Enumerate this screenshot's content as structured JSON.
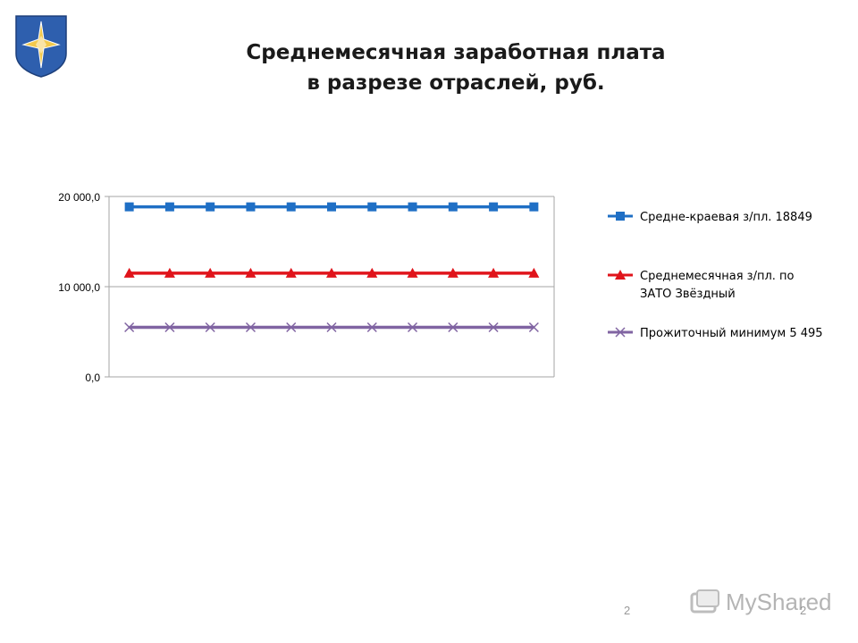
{
  "slide": {
    "title_line1": "Среднемесячная заработная плата",
    "title_line2": "в разрезе отраслей, руб.",
    "page_number_left": "2",
    "page_number_right": "2",
    "watermark": "MyShared",
    "emblem_icon": "coat-of-arms-star-icon",
    "emblem_colors": {
      "shield": "#2e5fae",
      "star": "#f2c94c",
      "star_outline": "#ffffff"
    }
  },
  "chart_data": {
    "type": "line",
    "title": "",
    "xlabel": "",
    "ylabel": "",
    "ylim": [
      0,
      20000
    ],
    "y_ticks": [
      {
        "value": 0,
        "label": "0,0"
      },
      {
        "value": 10000,
        "label": "10 000,0"
      },
      {
        "value": 20000,
        "label": "20 000,0"
      }
    ],
    "x": [
      1,
      2,
      3,
      4,
      5,
      6,
      7,
      8,
      9,
      10,
      11
    ],
    "grid": true,
    "legend_position": "right",
    "series": [
      {
        "name": "Средне-краевая з/пл. 18849",
        "legend_lines": [
          "Средне-краевая з/пл. 18849"
        ],
        "color": "#1f6fc5",
        "marker": "square",
        "values": [
          18849,
          18849,
          18849,
          18849,
          18849,
          18849,
          18849,
          18849,
          18849,
          18849,
          18849
        ]
      },
      {
        "name": "Среднемесячная з/пл. по ЗАТО Звёздный",
        "legend_lines": [
          "Среднемесячная з/пл. по",
          "ЗАТО Звёздный"
        ],
        "color": "#e0141b",
        "marker": "triangle",
        "values": [
          11500,
          11500,
          11500,
          11500,
          11500,
          11500,
          11500,
          11500,
          11500,
          11500,
          11500
        ]
      },
      {
        "name": "Прожиточный минимум 5 495",
        "legend_lines": [
          "Прожиточный минимум 5 495"
        ],
        "color": "#8064a2",
        "marker": "x",
        "values": [
          5495,
          5495,
          5495,
          5495,
          5495,
          5495,
          5495,
          5495,
          5495,
          5495,
          5495
        ]
      }
    ]
  }
}
